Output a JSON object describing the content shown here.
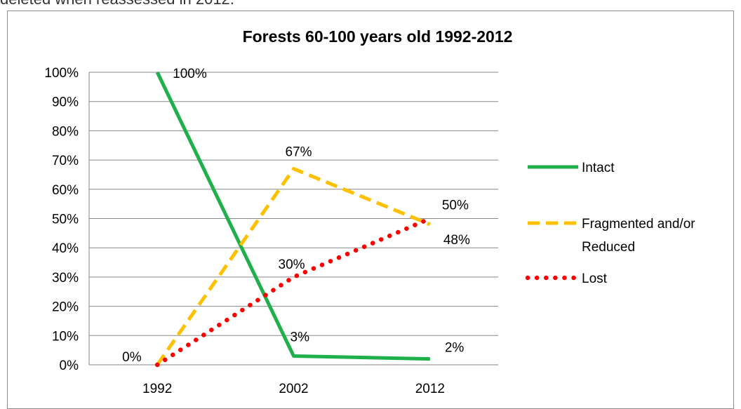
{
  "caption": "deleted when reassessed in 2012.",
  "chart_data": {
    "type": "line",
    "title": "Forests 60-100 years old 1992-2012",
    "xlabel": "",
    "ylabel": "",
    "categories": [
      "1992",
      "2002",
      "2012"
    ],
    "ylim": [
      0,
      100
    ],
    "yticks": [
      "0%",
      "10%",
      "20%",
      "30%",
      "40%",
      "50%",
      "60%",
      "70%",
      "80%",
      "90%",
      "100%"
    ],
    "grid": true,
    "legend_position": "right",
    "series": [
      {
        "name": "Intact",
        "values": [
          100,
          3,
          2
        ],
        "color": "#1fb04c",
        "style": "solid",
        "labels": [
          "100%",
          "3%",
          "2%"
        ]
      },
      {
        "name": "Fragmented and/or Reduced",
        "values": [
          0,
          67,
          48
        ],
        "color": "#ffc000",
        "style": "dashed",
        "labels": [
          "",
          "67%",
          "48%"
        ]
      },
      {
        "name": "Lost",
        "values": [
          0,
          30,
          50
        ],
        "color": "#ff0000",
        "style": "dotted",
        "labels": [
          "0%",
          "30%",
          "50%"
        ]
      }
    ]
  }
}
